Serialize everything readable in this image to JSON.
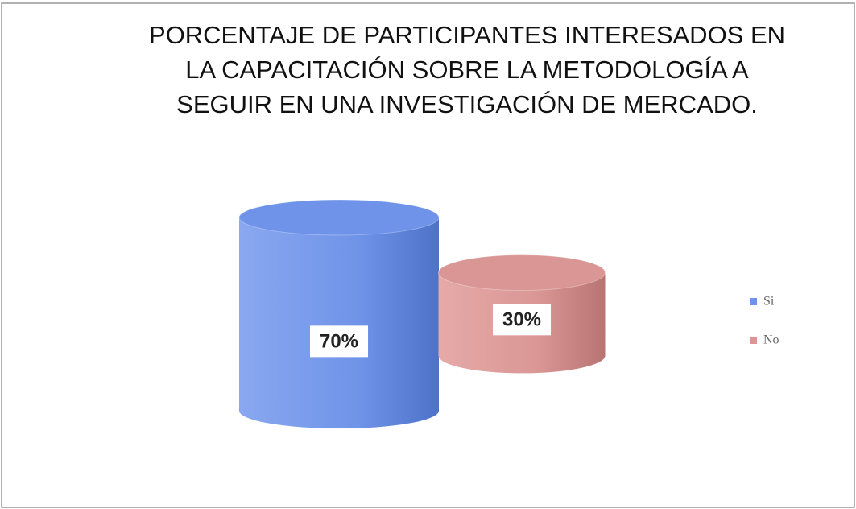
{
  "chart_data": {
    "type": "cylinder",
    "title": [
      "PORCENTAJE DE PARTICIPANTES INTERESADOS  EN",
      "LA CAPACITACIÓN SOBRE LA METODOLOGÍA A",
      "SEGUIR EN UNA INVESTIGACIÓN DE MERCADO."
    ],
    "categories": [
      "Si",
      "No"
    ],
    "series": [
      {
        "name": "Si",
        "color": "#6f93e8"
      },
      {
        "name": "No",
        "color": "#d99694"
      }
    ],
    "values": [
      70,
      30
    ],
    "value_labels": [
      "70%",
      "30%"
    ],
    "legend": "right"
  }
}
